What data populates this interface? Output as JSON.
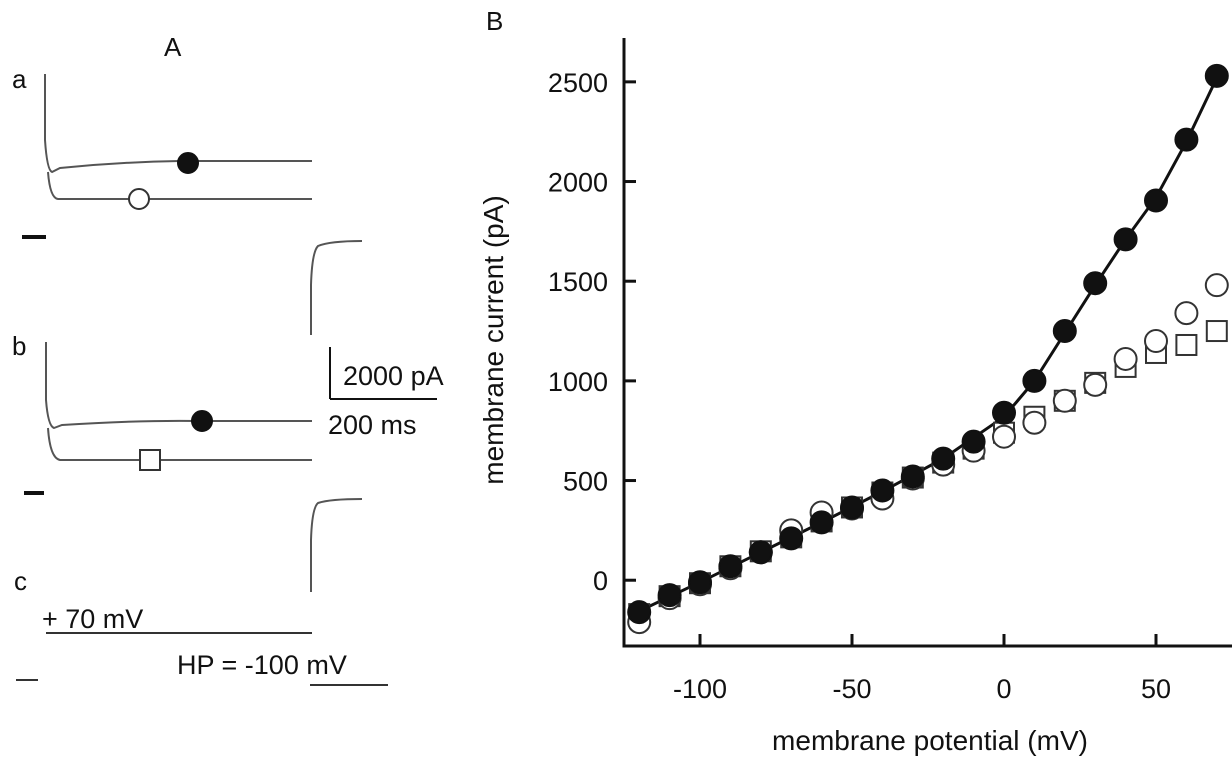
{
  "panel_a": {
    "letter": "A",
    "trace_labels": [
      "a",
      "b",
      "c"
    ],
    "scale_current": "2000 pA",
    "scale_time": "200 ms",
    "voltage_label": "+ 70 mV",
    "holding_label": "HP = -100 mV"
  },
  "chart_data": {
    "type": "scatter",
    "panel_label": "B",
    "xlabel": "membrane potential (mV)",
    "ylabel": "membrane current (pA)",
    "xlim": [
      -125,
      75
    ],
    "ylim": [
      -330,
      2720
    ],
    "xticks": [
      -100,
      -50,
      0,
      50
    ],
    "yticks": [
      0,
      500,
      1000,
      1500,
      2000,
      2500
    ],
    "grid": false,
    "series": [
      {
        "marker": "filled-circle",
        "x": [
          -120,
          -110,
          -100,
          -90,
          -80,
          -70,
          -60,
          -50,
          -40,
          -30,
          -20,
          -10,
          0,
          10,
          20,
          30,
          40,
          50,
          60,
          70
        ],
        "y": [
          -160,
          -75,
          -10,
          70,
          140,
          210,
          290,
          365,
          450,
          520,
          610,
          695,
          840,
          1000,
          1250,
          1490,
          1710,
          1905,
          2210,
          2530
        ]
      },
      {
        "marker": "open-circle",
        "x": [
          -120,
          -110,
          -100,
          -90,
          -80,
          -70,
          -60,
          -50,
          -40,
          -30,
          -20,
          -10,
          0,
          10,
          20,
          30,
          40,
          50,
          60,
          70
        ],
        "y": [
          -210,
          -90,
          -20,
          60,
          140,
          250,
          340,
          360,
          410,
          510,
          580,
          650,
          720,
          790,
          900,
          980,
          1110,
          1200,
          1340,
          1480
        ]
      },
      {
        "marker": "open-square",
        "x": [
          -120,
          -110,
          -100,
          -90,
          -80,
          -70,
          -60,
          -50,
          -40,
          -30,
          -20,
          -10,
          0,
          10,
          20,
          30,
          40,
          50,
          60,
          70
        ],
        "y": [
          -170,
          -80,
          -15,
          70,
          145,
          215,
          295,
          365,
          440,
          515,
          590,
          660,
          740,
          820,
          900,
          990,
          1070,
          1140,
          1180,
          1250
        ]
      }
    ],
    "fit_line": {
      "x": [
        -120,
        -100,
        -80,
        -60,
        -40,
        -20,
        0,
        10,
        20,
        30,
        40,
        50,
        60,
        70
      ],
      "y": [
        -155,
        -10,
        140,
        290,
        445,
        610,
        820,
        1000,
        1240,
        1480,
        1710,
        1920,
        2200,
        2520
      ]
    },
    "fit_line_open": {
      "x": [
        0,
        10,
        20,
        30,
        40,
        50,
        60,
        70
      ],
      "y": [
        720,
        800,
        890,
        980,
        1070,
        1160,
        1250,
        1330
      ]
    }
  }
}
